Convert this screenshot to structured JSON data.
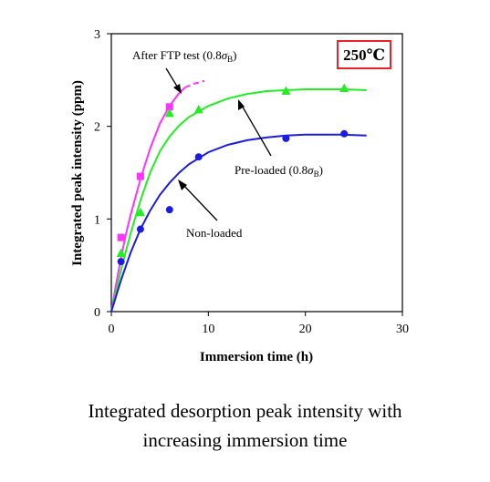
{
  "chart_data": {
    "type": "scatter",
    "title": "",
    "xlabel": "Immersion time (h)",
    "ylabel": "Integrated peak intensity (ppm)",
    "xlim": [
      0,
      30
    ],
    "ylim": [
      0,
      3
    ],
    "x_ticks": [
      "0",
      "10",
      "20",
      "30"
    ],
    "y_ticks": [
      "0",
      "1",
      "2",
      "3"
    ],
    "grid": false,
    "temperature_label": "250℃",
    "temperature_box_color": "#e8242a",
    "series": [
      {
        "name": "After FTP test (0.8σB)",
        "color": "#ff33ff",
        "marker": "square",
        "points": [
          [
            1,
            0.8
          ],
          [
            3,
            1.46
          ],
          [
            6,
            2.21
          ]
        ],
        "curve": [
          [
            0,
            0
          ],
          [
            0.5,
            0.3
          ],
          [
            1,
            0.58
          ],
          [
            1.5,
            0.83
          ],
          [
            2,
            1.05
          ],
          [
            3,
            1.43
          ],
          [
            4,
            1.76
          ],
          [
            5,
            2.03
          ],
          [
            6,
            2.22
          ],
          [
            7,
            2.36
          ],
          [
            7.6,
            2.42
          ]
        ],
        "dashed_curve": [
          [
            7.6,
            2.42
          ],
          [
            8.5,
            2.46
          ],
          [
            9.6,
            2.49
          ]
        ]
      },
      {
        "name": "Pre-loaded (0.8σB)",
        "color": "#22ee22",
        "marker": "triangle",
        "points": [
          [
            1,
            0.63
          ],
          [
            3,
            1.07
          ],
          [
            6,
            2.14
          ],
          [
            9,
            2.18
          ],
          [
            18,
            2.38
          ],
          [
            24,
            2.41
          ]
        ],
        "curve": [
          [
            0,
            0
          ],
          [
            0.5,
            0.22
          ],
          [
            1,
            0.45
          ],
          [
            2,
            0.85
          ],
          [
            3,
            1.2
          ],
          [
            4,
            1.5
          ],
          [
            5,
            1.73
          ],
          [
            6,
            1.89
          ],
          [
            7,
            2.01
          ],
          [
            8,
            2.1
          ],
          [
            10,
            2.22
          ],
          [
            12,
            2.3
          ],
          [
            14,
            2.35
          ],
          [
            16,
            2.38
          ],
          [
            18,
            2.39
          ],
          [
            20,
            2.4
          ],
          [
            22,
            2.4
          ],
          [
            24,
            2.4
          ],
          [
            26.3,
            2.39
          ]
        ]
      },
      {
        "name": "Non-loaded",
        "color": "#1c1ce0",
        "marker": "circle",
        "points": [
          [
            1,
            0.54
          ],
          [
            3,
            0.89
          ],
          [
            6,
            1.1
          ],
          [
            9,
            1.67
          ],
          [
            18,
            1.87
          ],
          [
            24,
            1.92
          ]
        ],
        "curve": [
          [
            0,
            0
          ],
          [
            0.5,
            0.17
          ],
          [
            1,
            0.34
          ],
          [
            2,
            0.64
          ],
          [
            3,
            0.89
          ],
          [
            4,
            1.09
          ],
          [
            5,
            1.26
          ],
          [
            6,
            1.39
          ],
          [
            7,
            1.5
          ],
          [
            8,
            1.59
          ],
          [
            10,
            1.72
          ],
          [
            12,
            1.8
          ],
          [
            14,
            1.85
          ],
          [
            16,
            1.88
          ],
          [
            18,
            1.9
          ],
          [
            20,
            1.91
          ],
          [
            22,
            1.91
          ],
          [
            24,
            1.91
          ],
          [
            26.3,
            1.9
          ]
        ]
      }
    ],
    "annotations": [
      {
        "id": "ftp",
        "text_main": "After FTP test (0.8",
        "text_sigma": "σ",
        "text_sub": "B",
        "text_end": ")"
      },
      {
        "id": "pre",
        "text_main": "Pre-loaded (0.8",
        "text_sigma": "σ",
        "text_sub": "B",
        "text_end": ")"
      },
      {
        "id": "non",
        "text_main": "Non-loaded"
      }
    ]
  },
  "caption": {
    "line1": "Integrated desorption peak intensity with",
    "line2": "increasing immersion time"
  }
}
